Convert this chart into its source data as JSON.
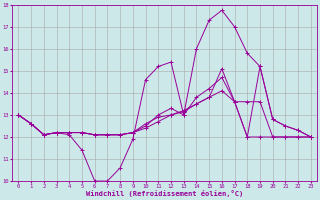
{
  "xlabel": "Windchill (Refroidissement éolien,°C)",
  "background_color": "#cce8e8",
  "line_color": "#990099",
  "grid_color": "#aaaaaa",
  "xlim": [
    -0.5,
    23.5
  ],
  "ylim": [
    10,
    18
  ],
  "yticks": [
    10,
    11,
    12,
    13,
    14,
    15,
    16,
    17,
    18
  ],
  "xticks": [
    0,
    1,
    2,
    3,
    4,
    5,
    6,
    7,
    8,
    9,
    10,
    11,
    12,
    13,
    14,
    15,
    16,
    17,
    18,
    19,
    20,
    21,
    22,
    23
  ],
  "line1": [
    13.0,
    12.6,
    12.1,
    12.2,
    12.1,
    11.4,
    10.0,
    10.0,
    10.6,
    11.9,
    14.6,
    15.2,
    15.4,
    13.0,
    16.0,
    17.3,
    17.75,
    17.0,
    15.8,
    15.2,
    12.8,
    12.5,
    12.3,
    12.0
  ],
  "line2": [
    13.0,
    12.6,
    12.1,
    12.2,
    12.2,
    12.2,
    12.1,
    12.1,
    12.1,
    12.2,
    12.6,
    12.9,
    13.0,
    13.15,
    13.5,
    13.8,
    15.1,
    13.6,
    12.0,
    15.2,
    12.8,
    12.5,
    12.3,
    12.0
  ],
  "line3": [
    13.0,
    12.6,
    12.1,
    12.2,
    12.2,
    12.2,
    12.1,
    12.1,
    12.1,
    12.2,
    12.5,
    13.0,
    13.3,
    13.0,
    13.8,
    14.2,
    14.7,
    13.6,
    12.0,
    12.0,
    12.0,
    12.0,
    12.0,
    12.0
  ],
  "line4": [
    13.0,
    12.6,
    12.1,
    12.2,
    12.2,
    12.2,
    12.1,
    12.1,
    12.1,
    12.2,
    12.4,
    12.7,
    13.0,
    13.2,
    13.5,
    13.8,
    14.1,
    13.6,
    13.6,
    13.6,
    12.0,
    12.0,
    12.0,
    12.0
  ]
}
